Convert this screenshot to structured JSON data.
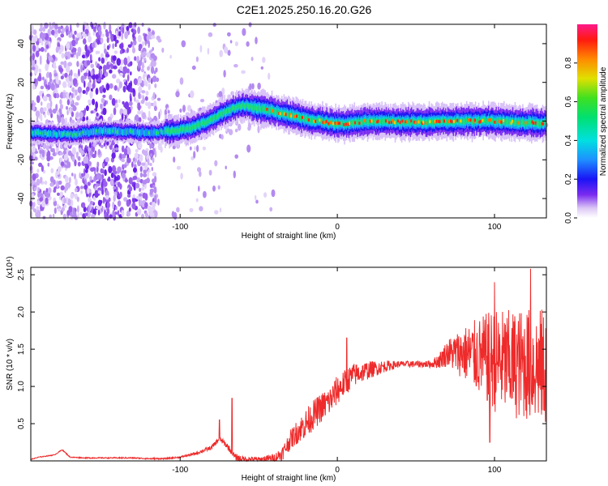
{
  "title": "C2E1.2025.250.16.20.G26",
  "colors": {
    "snr_line": "#ee2a2a",
    "frame": "#000000"
  },
  "chart_data": [
    {
      "type": "heatmap",
      "name": "spectrogram",
      "xlabel": "Height of straight line (km)",
      "ylabel": "Frequency (Hz)",
      "xlim": [
        -195,
        133
      ],
      "ylim": [
        -50,
        50
      ],
      "xticks": [
        -100,
        0,
        100
      ],
      "yticks": [
        -40,
        -20,
        0,
        20,
        40
      ],
      "ridge_x": [
        -195,
        -170,
        -150,
        -120,
        -105,
        -95,
        -85,
        -75,
        -65,
        -58,
        -52,
        -48,
        -44,
        -40,
        -35,
        -30,
        -25,
        -20,
        -15,
        -10,
        -5,
        0,
        10,
        20,
        40,
        60,
        80,
        100,
        120,
        133
      ],
      "ridge_freq": [
        -6,
        -7,
        -5,
        -6,
        -5,
        -4,
        -1,
        3,
        7,
        8,
        7,
        6,
        6,
        5,
        4,
        3,
        2,
        1,
        0.5,
        0,
        -1,
        -1.5,
        -1,
        0,
        -0.5,
        -0.5,
        0,
        0,
        -1,
        -1
      ],
      "colorbar": {
        "label": "Normalized spectral amplitude",
        "min": 0,
        "max": 1,
        "ticks": [
          0.0,
          0.2,
          0.4,
          0.6,
          0.8
        ]
      }
    },
    {
      "type": "line",
      "name": "snr",
      "xlabel": "Height of straight line (km)",
      "ylabel": "SNR (10 * v/v)",
      "y_scale_label": "(x10⁴)",
      "xlim": [
        -195,
        133
      ],
      "ylim": [
        0,
        2.6
      ],
      "xticks": [
        -100,
        0,
        100
      ],
      "yticks": [
        0.5,
        1.0,
        1.5,
        2.0,
        2.5
      ],
      "baseline_x": [
        -195,
        -190,
        -180,
        -175,
        -170,
        -160,
        -150,
        -140,
        -130,
        -120,
        -115,
        -110,
        -100,
        -90,
        -80,
        -75,
        -70,
        -65,
        -60,
        -55,
        -50,
        -45,
        -40,
        -35,
        -30,
        -25,
        -20,
        -15,
        -10,
        -5,
        0,
        5,
        10,
        20,
        30,
        40,
        50,
        60,
        65,
        70,
        80,
        90,
        100,
        110,
        120,
        133
      ],
      "baseline_y": [
        0.02,
        0.05,
        0.08,
        0.15,
        0.05,
        0.04,
        0.04,
        0.04,
        0.04,
        0.03,
        0.03,
        0.03,
        0.05,
        0.1,
        0.18,
        0.3,
        0.2,
        0.05,
        0.02,
        0.02,
        0.02,
        0.03,
        0.04,
        0.1,
        0.28,
        0.4,
        0.5,
        0.62,
        0.72,
        0.8,
        0.95,
        1.05,
        1.15,
        1.22,
        1.27,
        1.3,
        1.3,
        1.3,
        1.35,
        1.45,
        1.45,
        1.4,
        1.35,
        1.3,
        1.3,
        1.25
      ],
      "noise_amp_x": [
        -195,
        -100,
        -60,
        -50,
        -40,
        -20,
        0,
        40,
        60,
        66,
        80,
        100,
        133
      ],
      "noise_amp_y": [
        0.005,
        0.01,
        0.05,
        0.03,
        0.06,
        0.2,
        0.2,
        0.04,
        0.05,
        0.12,
        0.35,
        0.7,
        0.8
      ],
      "spikes": [
        {
          "x": -67,
          "y": 0.84
        },
        {
          "x": -75,
          "y": 0.55
        },
        {
          "x": 6,
          "y": 1.65
        },
        {
          "x": 100,
          "y": 2.4
        },
        {
          "x": 123,
          "y": 2.58
        },
        {
          "x": 97,
          "y": 0.25
        }
      ]
    }
  ]
}
